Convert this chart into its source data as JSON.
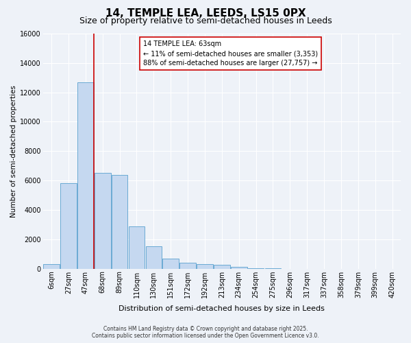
{
  "title": "14, TEMPLE LEA, LEEDS, LS15 0PX",
  "subtitle": "Size of property relative to semi-detached houses in Leeds",
  "xlabel": "Distribution of semi-detached houses by size in Leeds",
  "ylabel": "Number of semi-detached properties",
  "footer1": "Contains HM Land Registry data © Crown copyright and database right 2025.",
  "footer2": "Contains public sector information licensed under the Open Government Licence v3.0.",
  "categories": [
    "6sqm",
    "27sqm",
    "47sqm",
    "68sqm",
    "89sqm",
    "110sqm",
    "130sqm",
    "151sqm",
    "172sqm",
    "192sqm",
    "213sqm",
    "234sqm",
    "254sqm",
    "275sqm",
    "296sqm",
    "317sqm",
    "337sqm",
    "358sqm",
    "379sqm",
    "399sqm",
    "420sqm"
  ],
  "values": [
    300,
    5800,
    12700,
    6500,
    6400,
    2900,
    1500,
    700,
    400,
    300,
    250,
    100,
    50,
    10,
    5,
    2,
    1,
    0,
    0,
    0,
    0
  ],
  "bar_color": "#c5d8f0",
  "bar_edge_color": "#6aaad4",
  "vline_color": "#cc0000",
  "annotation_text": "14 TEMPLE LEA: 63sqm\n← 11% of semi-detached houses are smaller (3,353)\n88% of semi-detached houses are larger (27,757) →",
  "annotation_box_color": "#ffffff",
  "annotation_box_edge": "#cc0000",
  "ylim": [
    0,
    16000
  ],
  "yticks": [
    0,
    2000,
    4000,
    6000,
    8000,
    10000,
    12000,
    14000,
    16000
  ],
  "background_color": "#eef2f8",
  "plot_background": "#eef2f8",
  "grid_color": "#ffffff",
  "title_fontsize": 11,
  "subtitle_fontsize": 9,
  "tick_fontsize": 7,
  "ylabel_fontsize": 7.5,
  "xlabel_fontsize": 8,
  "footer_fontsize": 5.5
}
